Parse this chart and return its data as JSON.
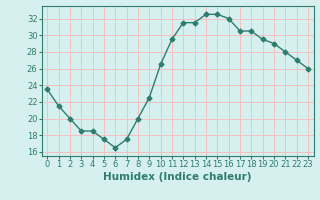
{
  "x": [
    0,
    1,
    2,
    3,
    4,
    5,
    6,
    7,
    8,
    9,
    10,
    11,
    12,
    13,
    14,
    15,
    16,
    17,
    18,
    19,
    20,
    21,
    22,
    23
  ],
  "y": [
    23.5,
    21.5,
    20.0,
    18.5,
    18.5,
    17.5,
    16.5,
    17.5,
    20.0,
    22.5,
    26.5,
    29.5,
    31.5,
    31.5,
    32.5,
    32.5,
    32.0,
    30.5,
    30.5,
    29.5,
    29.0,
    28.0,
    27.0,
    26.0
  ],
  "xlabel": "Humidex (Indice chaleur)",
  "ylim": [
    15.5,
    33.5
  ],
  "xlim": [
    -0.5,
    23.5
  ],
  "yticks": [
    16,
    18,
    20,
    22,
    24,
    26,
    28,
    30,
    32
  ],
  "xticks": [
    0,
    1,
    2,
    3,
    4,
    5,
    6,
    7,
    8,
    9,
    10,
    11,
    12,
    13,
    14,
    15,
    16,
    17,
    18,
    19,
    20,
    21,
    22,
    23
  ],
  "line_color": "#2e7d6e",
  "marker": "D",
  "marker_size": 2.5,
  "bg_color": "#d6f0ef",
  "grid_color": "#f5c0c0",
  "tick_label_fontsize": 6,
  "xlabel_fontsize": 7.5,
  "spine_color": "#2e7d6e"
}
